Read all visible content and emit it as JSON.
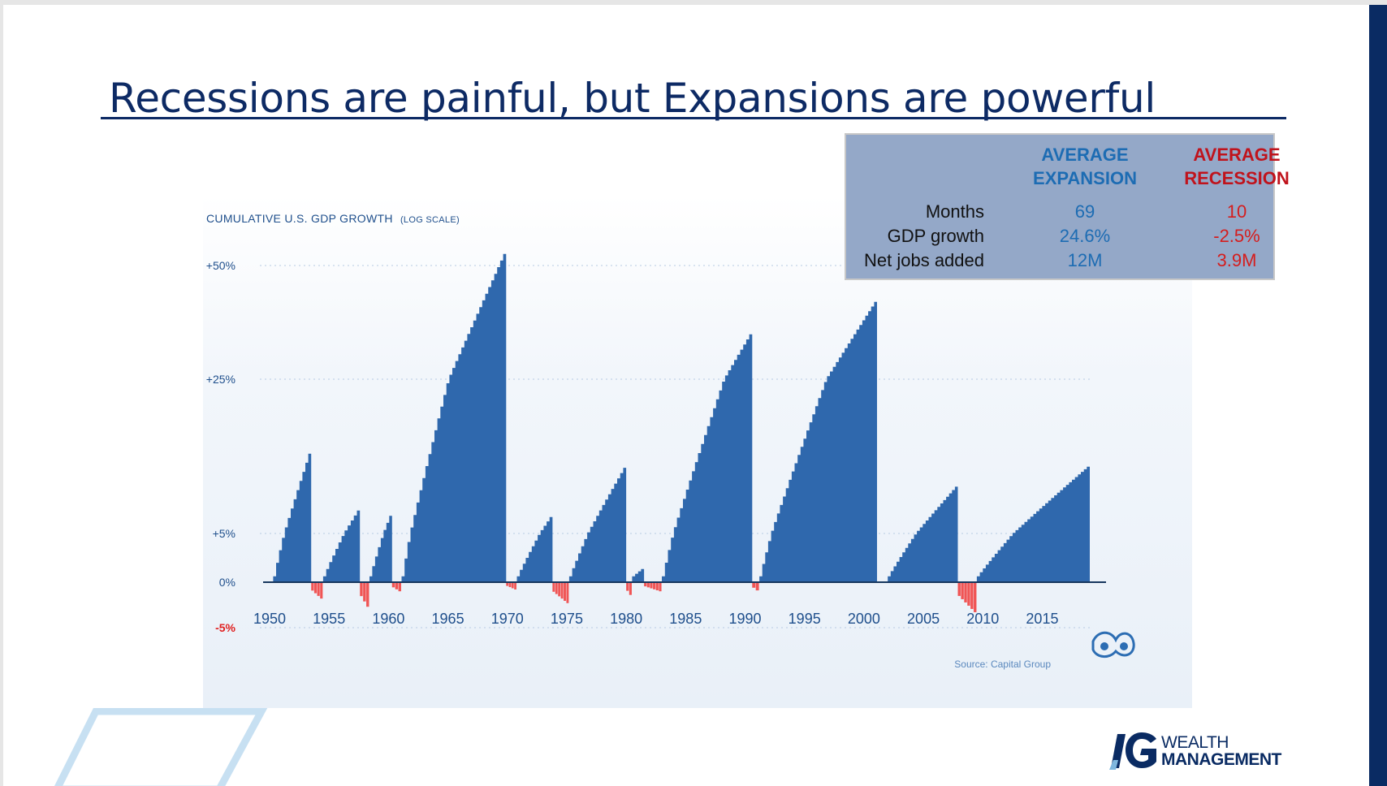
{
  "slide": {
    "title": "Recessions are painful, but Expansions are powerful"
  },
  "stats_table": {
    "header_expansion_line1": "AVERAGE",
    "header_expansion_line2": "EXPANSION",
    "header_recession_line1": "AVERAGE",
    "header_recession_line2": "RECESSION",
    "rows": [
      {
        "label": "Months",
        "expansion": "69",
        "recession": "10"
      },
      {
        "label": "GDP growth",
        "expansion": "24.6%",
        "recession": "-2.5%"
      },
      {
        "label": "Net jobs added",
        "expansion": "12M",
        "recession": "3.9M"
      }
    ],
    "colors": {
      "expansion": "#1d6cb3",
      "recession": "#c0131c"
    }
  },
  "chart_data": {
    "type": "area",
    "title": "CUMULATIVE U.S. GDP GROWTH",
    "title_suffix": "(LOG SCALE)",
    "scale": "log",
    "ytick_labels": [
      "+50%",
      "+25%",
      "+5%",
      "0%",
      "-5%"
    ],
    "ytick_values": [
      50,
      25,
      5,
      0,
      -5
    ],
    "xtick_labels": [
      "1950",
      "1955",
      "1960",
      "1965",
      "1970",
      "1975",
      "1980",
      "1985",
      "1990",
      "1995",
      "2000",
      "2005",
      "2010",
      "2015"
    ],
    "xlim": [
      1950,
      2019
    ],
    "grid": "dotted horizontal",
    "source": "Source: Capital Group",
    "colors": {
      "expansion": "#2f68ad",
      "recession": "#f05555"
    },
    "expansions": [
      {
        "start": 1950.3,
        "end": 1953.5,
        "peak": 16.5
      },
      {
        "start": 1954.5,
        "end": 1957.6,
        "peak": 8.6
      },
      {
        "start": 1958.4,
        "end": 1960.3,
        "peak": 8.2
      },
      {
        "start": 1961.1,
        "end": 1969.9,
        "peak": 54.0
      },
      {
        "start": 1970.8,
        "end": 1973.8,
        "peak": 7.7
      },
      {
        "start": 1975.2,
        "end": 1980.0,
        "peak": 14.2
      },
      {
        "start": 1980.5,
        "end": 1981.5,
        "peak": 1.6
      },
      {
        "start": 1983.0,
        "end": 1990.6,
        "peak": 36.0
      },
      {
        "start": 1991.2,
        "end": 2001.1,
        "peak": 43.0
      },
      {
        "start": 2002.0,
        "end": 2007.9,
        "peak": 11.5
      },
      {
        "start": 2009.5,
        "end": 2019.0,
        "peak": 14.0
      }
    ],
    "recessions": [
      {
        "start": 1953.5,
        "end": 1954.5,
        "trough": -1.8
      },
      {
        "start": 1957.6,
        "end": 1958.4,
        "trough": -2.7
      },
      {
        "start": 1960.3,
        "end": 1961.1,
        "trough": -1.0
      },
      {
        "start": 1969.9,
        "end": 1970.8,
        "trough": -0.8
      },
      {
        "start": 1973.8,
        "end": 1975.2,
        "trough": -2.3
      },
      {
        "start": 1980.0,
        "end": 1980.5,
        "trough": -1.4
      },
      {
        "start": 1981.5,
        "end": 1983.0,
        "trough": -1.0
      },
      {
        "start": 1990.6,
        "end": 1991.2,
        "trough": -0.9
      },
      {
        "start": 2007.9,
        "end": 2009.5,
        "trough": -3.3
      }
    ]
  },
  "logo": {
    "mark": "IG",
    "line1": "WEALTH",
    "line2": "MANAGEMENT"
  },
  "icons": {
    "chart_logo": "capital-group-icon",
    "decoration": "parallelogram-outline"
  }
}
